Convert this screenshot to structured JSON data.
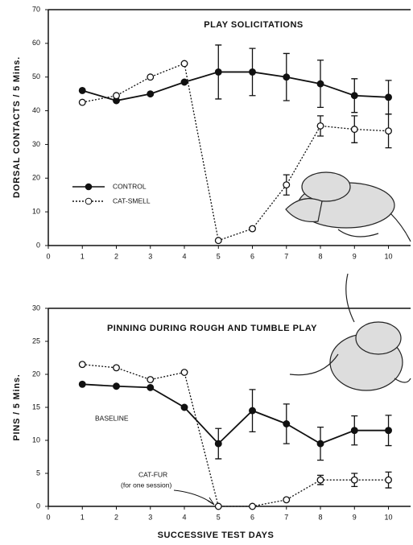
{
  "chart_data": [
    {
      "type": "line",
      "title": "PLAY SOLICITATIONS",
      "y_label": "DORSAL CONTACTS / 5 Mins.",
      "x": [
        1,
        2,
        3,
        4,
        5,
        6,
        7,
        8,
        9,
        10
      ],
      "xlim": [
        0,
        10.65
      ],
      "xticks": [
        0,
        1,
        2,
        3,
        4,
        5,
        6,
        7,
        8,
        9,
        10
      ],
      "ylim": [
        0,
        70
      ],
      "yticks": [
        0,
        10,
        20,
        30,
        40,
        50,
        60,
        70
      ],
      "legend": "left",
      "series": [
        {
          "name": "CONTROL",
          "color": "#111111",
          "marker": "filled",
          "dashed": false,
          "values": [
            46,
            43,
            45,
            48.5,
            51.5,
            51.5,
            50,
            48,
            44.5,
            44
          ],
          "errors": [
            null,
            null,
            null,
            null,
            8,
            7,
            7,
            7,
            5,
            5
          ]
        },
        {
          "name": "CAT-SMELL",
          "color": "#111111",
          "marker": "open",
          "dashed": true,
          "values": [
            42.5,
            44.5,
            50,
            54,
            1.5,
            5,
            18,
            35.5,
            34.5,
            34
          ],
          "errors": [
            null,
            null,
            null,
            null,
            null,
            null,
            3,
            3,
            4,
            5
          ]
        }
      ]
    },
    {
      "type": "line",
      "title": "PINNING DURING ROUGH AND TUMBLE PLAY",
      "y_label": "PINS / 5 Mins.",
      "x_label": "SUCCESSIVE TEST DAYS",
      "annotation": "(for one session)",
      "x": [
        1,
        2,
        3,
        4,
        5,
        6,
        7,
        8,
        9,
        10
      ],
      "xlim": [
        0,
        10.65
      ],
      "xticks": [
        0,
        1,
        2,
        3,
        4,
        5,
        6,
        7,
        8,
        9,
        10
      ],
      "ylim": [
        0,
        30
      ],
      "yticks": [
        0,
        5,
        10,
        15,
        20,
        25,
        30
      ],
      "series": [
        {
          "name": "BASELINE",
          "color": "#111111",
          "marker": "filled",
          "dashed": false,
          "values": [
            18.5,
            18.2,
            18,
            15,
            9.5,
            14.5,
            12.5,
            9.5,
            11.5,
            11.5
          ],
          "errors": [
            null,
            null,
            null,
            null,
            2.3,
            3.2,
            3,
            2.5,
            2.2,
            2.3
          ]
        },
        {
          "name": "CAT-FUR",
          "color": "#111111",
          "marker": "open",
          "dashed": true,
          "values": [
            21.5,
            21,
            19.2,
            20.3,
            0,
            0,
            1,
            4,
            4,
            4
          ],
          "errors": [
            null,
            null,
            null,
            null,
            null,
            null,
            null,
            0.7,
            1,
            1.2
          ]
        }
      ]
    }
  ]
}
